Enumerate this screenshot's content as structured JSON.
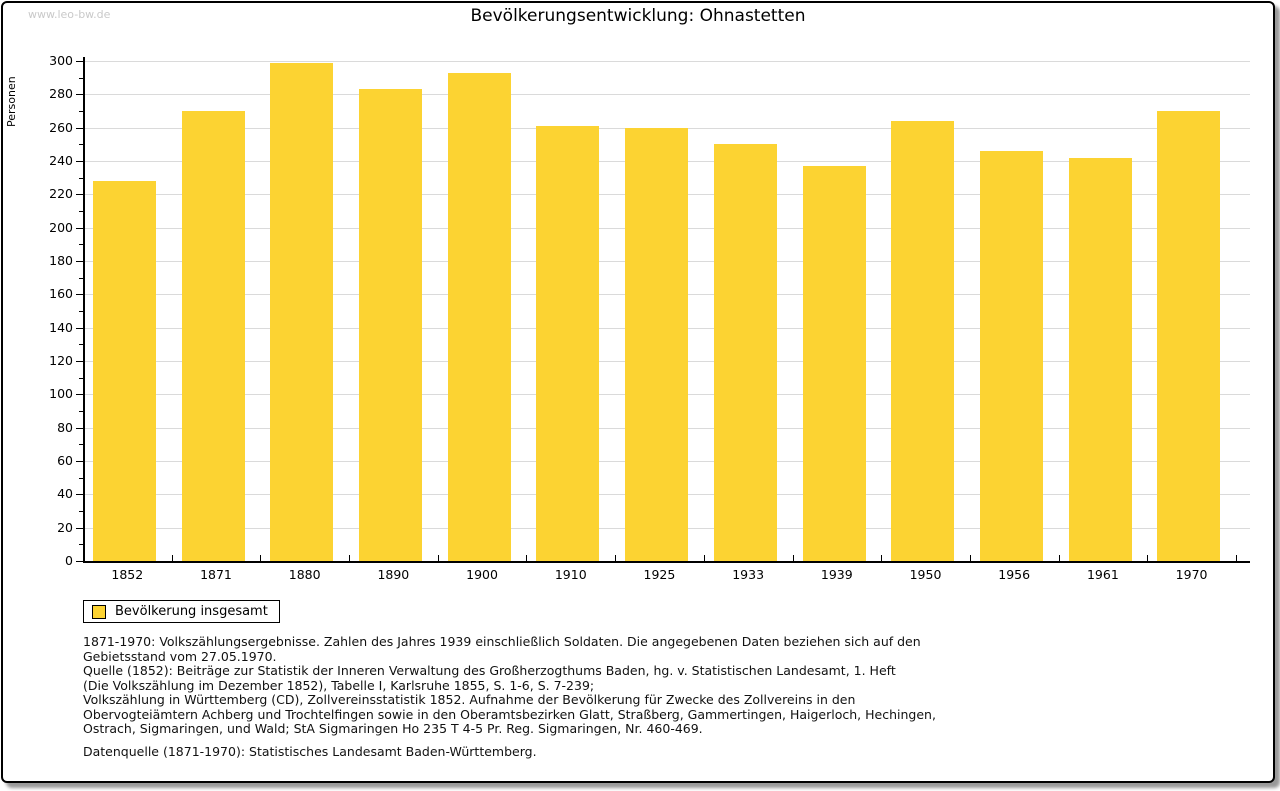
{
  "page": {
    "watermark": "www.leo-bw.de",
    "title": "Bevölkerungsentwicklung: Ohnastetten"
  },
  "chart_data": {
    "type": "bar",
    "title": "Bevölkerungsentwicklung: Ohnastetten",
    "categories": [
      "1852",
      "1871",
      "1880",
      "1890",
      "1900",
      "1910",
      "1925",
      "1933",
      "1939",
      "1950",
      "1956",
      "1961",
      "1970"
    ],
    "series": [
      {
        "name": "Bevölkerung insgesamt",
        "values": [
          228,
          270,
          299,
          283,
          293,
          261,
          260,
          250,
          237,
          264,
          246,
          242,
          270
        ]
      }
    ],
    "xlabel": "",
    "ylabel": "Personen",
    "ylim": [
      0,
      300
    ],
    "ytick_step": 20,
    "ytick_minor_step": 10,
    "grid": true,
    "legend_position": "bottom-left",
    "bar_color": "#FCD332",
    "grid_color": "#dadada",
    "axis_color": "#000000"
  },
  "legend": {
    "label": "Bevölkerung insgesamt",
    "swatch_color": "#FCD332"
  },
  "footer": {
    "notes_lines": [
      "1871-1970: Volkszählungsergebnisse. Zahlen des Jahres 1939 einschließlich Soldaten. Die angegebenen Daten beziehen sich auf den",
      "Gebietsstand vom 27.05.1970.",
      "Quelle (1852): Beiträge zur Statistik der Inneren Verwaltung des Großherzogthums Baden, hg. v. Statistischen Landesamt, 1. Heft",
      "(Die Volkszählung im Dezember 1852), Tabelle I, Karlsruhe 1855, S. 1-6, S. 7-239;",
      "Volkszählung in Württemberg (CD), Zollvereinsstatistik 1852. Aufnahme der Bevölkerung für Zwecke des Zollvereins in den",
      "Obervogteiämtern Achberg und Trochtelfingen sowie in den Oberamtsbezirken Glatt, Straßberg, Gammertingen, Haigerloch, Hechingen,",
      "Ostrach, Sigmaringen, und Wald; StA Sigmaringen Ho 235 T 4-5 Pr. Reg. Sigmaringen, Nr. 460-469."
    ],
    "datasource": "Datenquelle (1871-1970): Statistisches Landesamt Baden-Württemberg."
  }
}
